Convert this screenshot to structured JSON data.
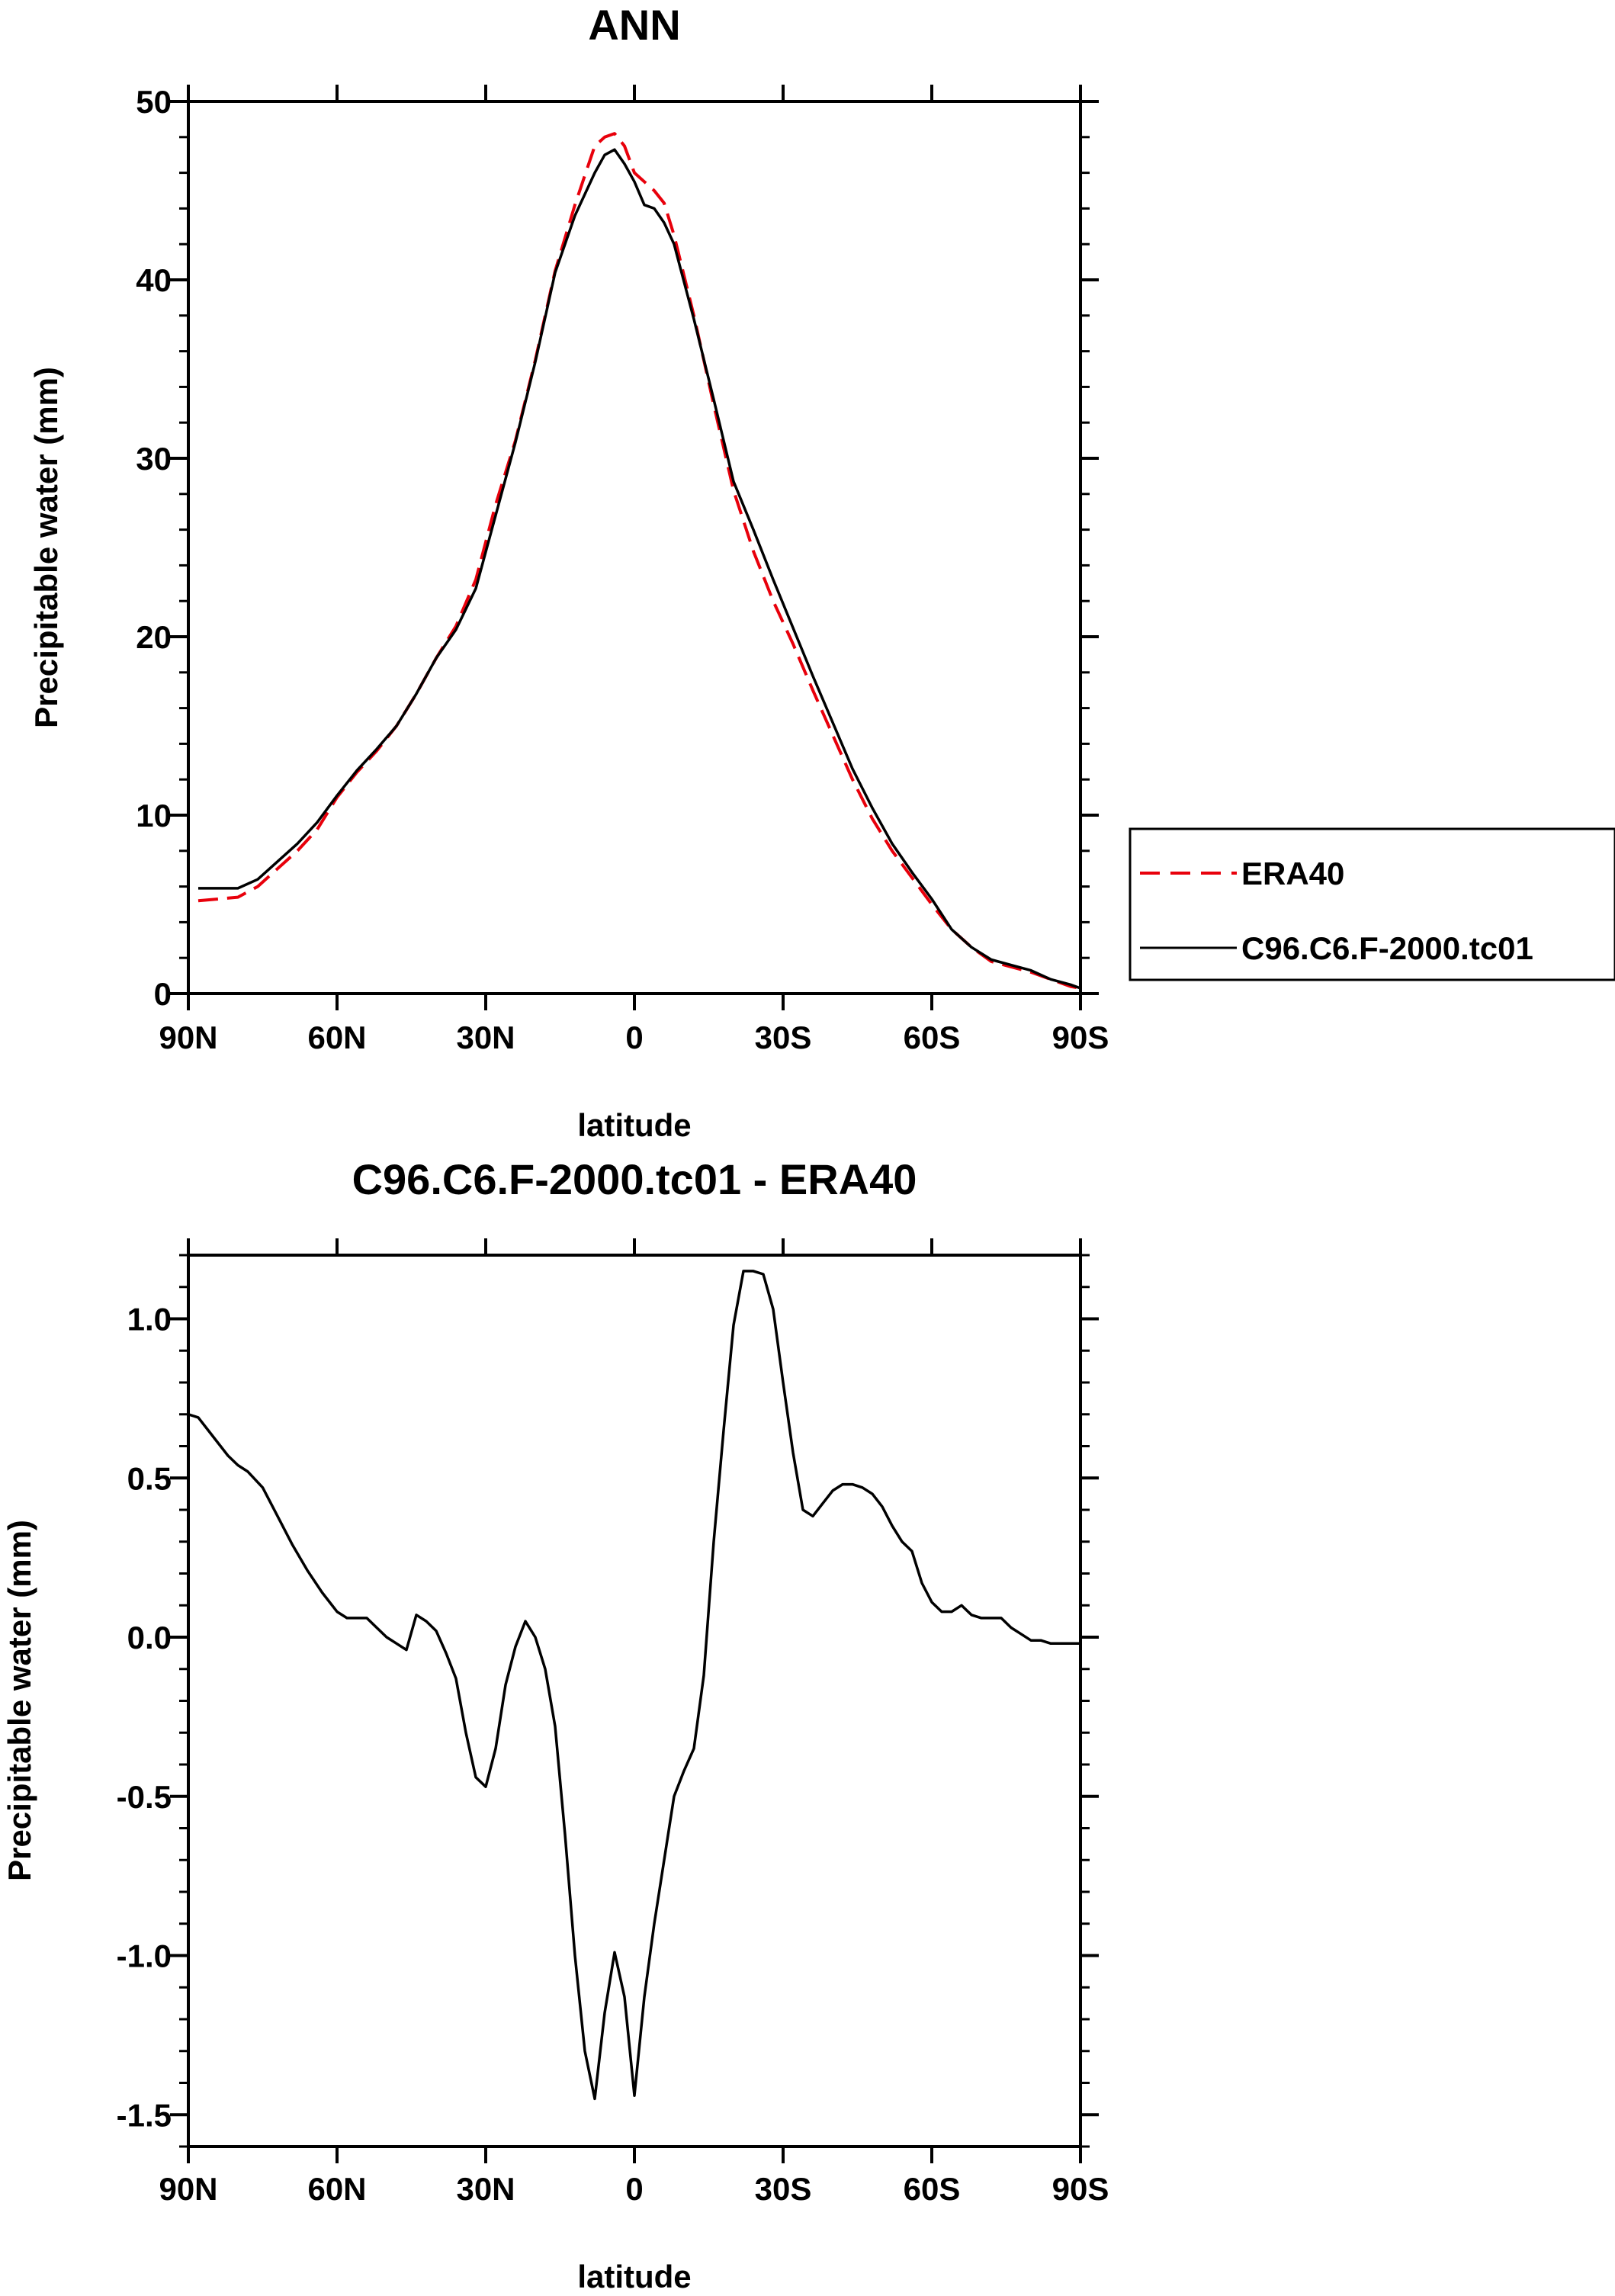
{
  "chart_data": [
    {
      "type": "line",
      "title": "ANN",
      "xlabel": "latitude",
      "ylabel": "Precipitable water (mm)",
      "xlim": [
        90,
        -90
      ],
      "ylim": [
        0,
        50
      ],
      "x_ticks": [
        90,
        60,
        30,
        0,
        -30,
        -60,
        -90
      ],
      "x_tick_labels": [
        "90N",
        "60N",
        "30N",
        "0",
        "30S",
        "60S",
        "90S"
      ],
      "y_ticks": [
        0,
        10,
        20,
        30,
        40,
        50
      ],
      "y_tick_labels": [
        "0",
        "10",
        "20",
        "30",
        "40",
        "50"
      ],
      "grid": false,
      "legend_placement": "right",
      "x": [
        88,
        84,
        80,
        76,
        72,
        68,
        64,
        60,
        56,
        52,
        48,
        44,
        40,
        36,
        32,
        28,
        24,
        20,
        16,
        12,
        8,
        6,
        4,
        2,
        0,
        -2,
        -4,
        -6,
        -8,
        -12,
        -16,
        -20,
        -24,
        -28,
        -32,
        -36,
        -40,
        -44,
        -48,
        -52,
        -56,
        -60,
        -64,
        -68,
        -72,
        -76,
        -80,
        -84,
        -88,
        -90
      ],
      "series": [
        {
          "name": "ERA40",
          "color": "#e8000b",
          "style": "dashed",
          "values": [
            5.2,
            5.3,
            5.4,
            6.0,
            7.0,
            8.0,
            9.2,
            11.0,
            12.4,
            13.6,
            15.0,
            16.8,
            18.8,
            20.6,
            23.2,
            27.4,
            31.0,
            35.5,
            40.5,
            44.2,
            47.5,
            48.0,
            48.2,
            47.5,
            46.0,
            45.5,
            45.0,
            44.3,
            42.5,
            38.0,
            33.0,
            28.2,
            24.8,
            22.0,
            19.6,
            17.0,
            14.5,
            12.0,
            9.8,
            8.0,
            6.5,
            5.0,
            3.6,
            2.6,
            1.8,
            1.5,
            1.2,
            0.8,
            0.4,
            0.3
          ]
        },
        {
          "name": "C96.C6.F-2000.tc01",
          "color": "#000000",
          "style": "solid",
          "values": [
            5.9,
            5.9,
            5.9,
            6.4,
            7.4,
            8.4,
            9.6,
            11.1,
            12.5,
            13.7,
            15.0,
            16.8,
            18.8,
            20.4,
            22.7,
            26.8,
            30.9,
            35.4,
            40.4,
            43.6,
            46.0,
            47.0,
            47.3,
            46.5,
            45.5,
            44.2,
            44.0,
            43.2,
            42.0,
            37.8,
            33.3,
            28.7,
            26.0,
            23.2,
            20.5,
            17.8,
            15.2,
            12.6,
            10.4,
            8.4,
            6.8,
            5.3,
            3.6,
            2.6,
            1.9,
            1.6,
            1.3,
            0.8,
            0.5,
            0.3
          ]
        }
      ],
      "legend": [
        "ERA40",
        "C96.C6.F-2000.tc01"
      ]
    },
    {
      "type": "line",
      "title": "C96.C6.F-2000.tc01 - ERA40",
      "xlabel": "latitude",
      "ylabel": "Precipitable water (mm)",
      "xlim": [
        90,
        -90
      ],
      "ylim": [
        -1.6,
        1.2
      ],
      "x_ticks": [
        90,
        60,
        30,
        0,
        -30,
        -60,
        -90
      ],
      "x_tick_labels": [
        "90N",
        "60N",
        "30N",
        "0",
        "30S",
        "60S",
        "90S"
      ],
      "y_ticks": [
        -1.5,
        -1.0,
        -0.5,
        0.0,
        0.5,
        1.0
      ],
      "y_tick_labels": [
        "-1.5",
        "-1.0",
        "-0.5",
        "0.0",
        "0.5",
        "1.0"
      ],
      "grid": false,
      "series": [
        {
          "name": "C96.C6.F-2000.tc01 - ERA40",
          "color": "#000000",
          "style": "solid",
          "x": [
            90,
            88,
            85,
            82,
            80,
            78,
            75,
            72,
            69,
            66,
            63,
            60,
            58,
            56,
            54,
            52,
            50,
            48,
            46,
            44,
            42,
            40,
            38,
            36,
            34,
            32,
            30,
            28,
            26,
            24,
            22,
            20,
            18,
            16,
            14,
            12,
            10,
            8,
            6,
            4,
            2,
            0,
            -2,
            -4,
            -6,
            -8,
            -10,
            -12,
            -14,
            -16,
            -18,
            -20,
            -22,
            -24,
            -26,
            -28,
            -30,
            -32,
            -34,
            -36,
            -38,
            -40,
            -42,
            -44,
            -46,
            -48,
            -50,
            -52,
            -54,
            -56,
            -58,
            -60,
            -62,
            -64,
            -66,
            -68,
            -70,
            -72,
            -74,
            -76,
            -78,
            -80,
            -82,
            -84,
            -86,
            -88,
            -90
          ],
          "values": [
            0.7,
            0.69,
            0.63,
            0.57,
            0.54,
            0.52,
            0.47,
            0.38,
            0.29,
            0.21,
            0.14,
            0.08,
            0.06,
            0.06,
            0.06,
            0.03,
            0.0,
            -0.02,
            -0.04,
            0.07,
            0.05,
            0.02,
            -0.05,
            -0.13,
            -0.3,
            -0.44,
            -0.47,
            -0.35,
            -0.15,
            -0.03,
            0.05,
            0.0,
            -0.1,
            -0.28,
            -0.62,
            -1.0,
            -1.3,
            -1.45,
            -1.18,
            -0.99,
            -1.13,
            -1.44,
            -1.13,
            -0.9,
            -0.7,
            -0.5,
            -0.42,
            -0.35,
            -0.12,
            0.3,
            0.65,
            0.98,
            1.15,
            1.15,
            1.14,
            1.03,
            0.8,
            0.58,
            0.4,
            0.38,
            0.42,
            0.46,
            0.48,
            0.48,
            0.47,
            0.45,
            0.41,
            0.35,
            0.3,
            0.27,
            0.17,
            0.11,
            0.08,
            0.08,
            0.1,
            0.07,
            0.06,
            0.06,
            0.06,
            0.03,
            0.01,
            -0.01,
            -0.01,
            -0.02,
            -0.02,
            -0.02,
            -0.02
          ]
        }
      ]
    }
  ]
}
